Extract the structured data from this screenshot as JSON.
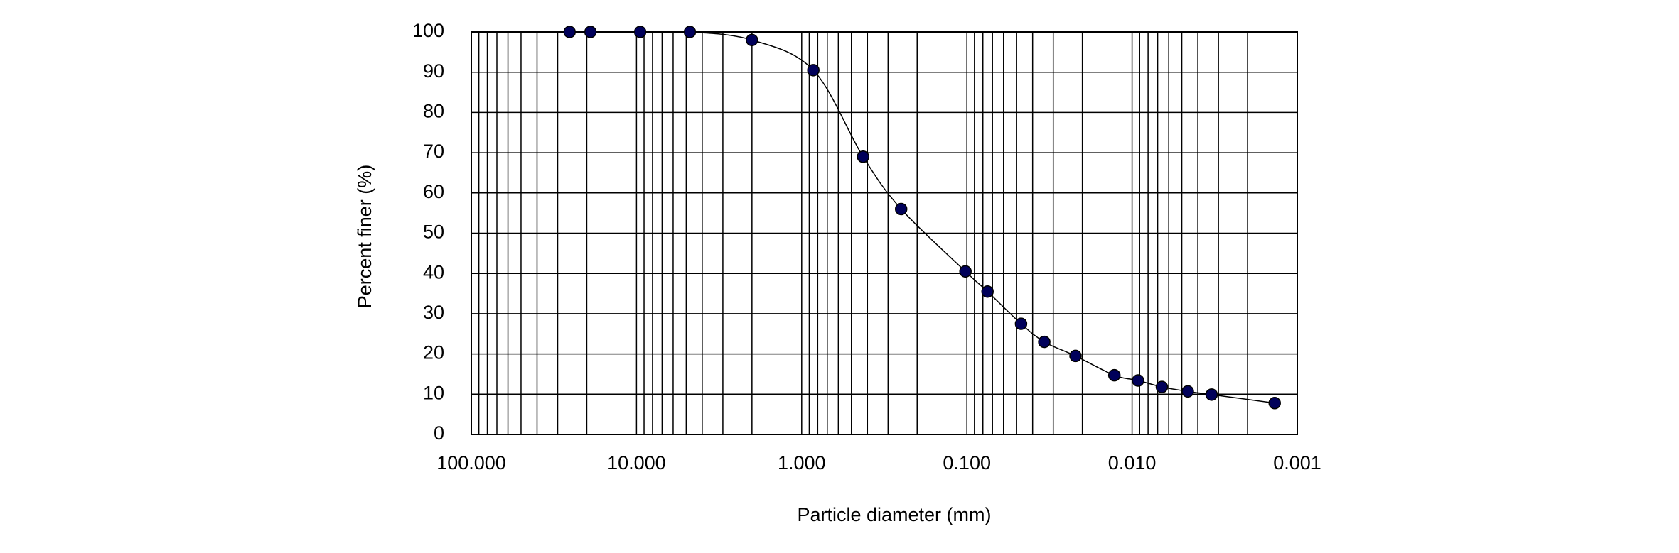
{
  "chart_data": {
    "type": "scatter",
    "x_label": "Particle diameter (mm)",
    "y_label": "Percent finer (%)",
    "x_log": true,
    "x_reversed": true,
    "grid": true,
    "xlim": [
      100,
      0.001
    ],
    "ylim": [
      0,
      100
    ],
    "xticks": [
      {
        "value": 100,
        "label": "100.000"
      },
      {
        "value": 10,
        "label": "10.000"
      },
      {
        "value": 1,
        "label": "1.000"
      },
      {
        "value": 0.1,
        "label": "0.100"
      },
      {
        "value": 0.01,
        "label": "0.010"
      },
      {
        "value": 0.001,
        "label": "0.001"
      }
    ],
    "yticks": [
      0,
      10,
      20,
      30,
      40,
      50,
      60,
      70,
      80,
      90,
      100
    ],
    "series": [
      {
        "color": "#00005a",
        "x": [
          25.4,
          19,
          9.5,
          4.75,
          2,
          0.85,
          0.425,
          0.25,
          0.102,
          0.075,
          0.047,
          0.034,
          0.022,
          0.0128,
          0.0092,
          0.0066,
          0.0046,
          0.0033,
          0.00137
        ],
        "values": [
          100,
          100,
          100,
          100,
          98,
          90.5,
          69,
          56,
          40.5,
          35.5,
          27.5,
          23,
          19.5,
          14.7,
          13.4,
          11.8,
          10.7,
          9.9,
          7.8
        ]
      }
    ]
  }
}
